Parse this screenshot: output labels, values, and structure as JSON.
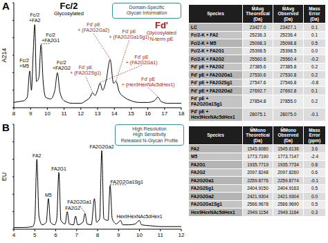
{
  "chart_data": [
    {
      "type": "line",
      "panel": "A",
      "title": {
        "text": [
          "Fc/2",
          "Glycosylated"
        ],
        "color": "#000000"
      },
      "subtitle": {
        "text": [
          "Fd'",
          "Glycosylated",
          "N-term pE"
        ],
        "color": "#9e1b1b"
      },
      "box": [
        "Domain-Specific",
        "Glycan Information"
      ],
      "y_label": "A214",
      "x": [
        8.0,
        8.3,
        8.6,
        8.8,
        8.95,
        9.05,
        9.15,
        9.25,
        9.35,
        9.5,
        9.62,
        9.75,
        9.9,
        10.2,
        10.45,
        10.6,
        10.75,
        11.0,
        11.5,
        12.0,
        12.3,
        12.55,
        12.7,
        12.85,
        13.0,
        13.15,
        13.3,
        13.5,
        13.75,
        13.95,
        14.1,
        14.3,
        14.6,
        15.0,
        15.5,
        16.0,
        16.4,
        16.6,
        16.8,
        17.2,
        17.6,
        18.0
      ],
      "values": [
        0.06,
        0.07,
        0.08,
        0.12,
        0.42,
        0.2,
        0.6,
        0.95,
        0.3,
        0.35,
        0.72,
        0.3,
        0.12,
        0.1,
        0.2,
        0.4,
        0.18,
        0.08,
        0.05,
        0.05,
        0.08,
        0.12,
        0.17,
        0.14,
        0.2,
        0.28,
        0.2,
        0.3,
        0.55,
        0.28,
        0.3,
        0.18,
        0.12,
        0.08,
        0.06,
        0.06,
        0.08,
        0.12,
        0.07,
        0.05,
        0.05,
        0.05
      ],
      "color": "#000000",
      "xlim": [
        8,
        18
      ],
      "xticks": [
        8,
        9,
        10,
        11,
        12,
        13,
        14,
        15,
        16,
        17,
        18
      ],
      "ylim": [
        0,
        1.2
      ],
      "yticks": [
        0,
        0.2,
        0.4,
        0.6,
        0.8,
        1,
        1.2
      ],
      "tick_labels": "x",
      "grid": false,
      "peak_labels": [
        {
          "text": [
            "Fc/2",
            "+M5"
          ],
          "x": 8.95,
          "y": 0.42,
          "color": "#000000"
        },
        {
          "text": [
            "Fc/2",
            "+FA2"
          ],
          "x": 9.25,
          "y": 0.95,
          "color": "#000000"
        },
        {
          "text": [
            "Fc/2",
            "+FA2G1"
          ],
          "x": 9.62,
          "y": 0.72,
          "color": "#000000"
        },
        {
          "text": [
            "Fc/2",
            "+FA2G2"
          ],
          "x": 10.6,
          "y": 0.4,
          "color": "#000000"
        },
        {
          "text": [
            "Fd' pE",
            "+ (FA2G2Sg1)"
          ],
          "x": 12.7,
          "y": 0.17,
          "color": "#9e1b1b"
        },
        {
          "text": [
            "Fd' pE",
            "+ (FA2G2Ga1)"
          ],
          "x": 13.15,
          "y": 0.28,
          "color": "#9e1b1b"
        },
        {
          "text": [
            "Fd' pE",
            "+ (FA2G2Ga2)"
          ],
          "x": 13.75,
          "y": 0.55,
          "color": "#9e1b1b"
        },
        {
          "text": [
            "Fd' pE",
            "+ (FA2G2Ga1Sg1)"
          ],
          "x": 14.1,
          "y": 0.3,
          "color": "#9e1b1b"
        },
        {
          "text": [
            "Fd' pE",
            "+ (Hex9HexNAc5dHex1)"
          ],
          "x": 16.6,
          "y": 0.12,
          "color": "#9e1b1b"
        }
      ]
    },
    {
      "type": "line",
      "panel": "B",
      "box": [
        "High Resolution",
        "High Sensitivity",
        "Released N-Glycan Profile"
      ],
      "y_label": "EU",
      "x": [
        4.0,
        4.5,
        4.9,
        5.0,
        5.1,
        5.2,
        5.35,
        5.55,
        5.65,
        5.75,
        5.95,
        6.05,
        6.15,
        6.25,
        6.45,
        6.55,
        6.65,
        6.85,
        6.95,
        7.05,
        7.3,
        7.4,
        7.5,
        7.7,
        7.85,
        7.95,
        8.1,
        8.2,
        8.3,
        8.5,
        8.6,
        8.7,
        8.9,
        9.1,
        9.2,
        9.5,
        9.8,
        10.0,
        10.1,
        10.5,
        11.0,
        11.5,
        12.0
      ],
      "values": [
        0.02,
        0.02,
        0.03,
        0.1,
        0.8,
        0.15,
        0.05,
        0.08,
        0.35,
        0.08,
        0.05,
        0.12,
        0.65,
        0.1,
        0.06,
        0.2,
        0.06,
        0.05,
        0.15,
        0.05,
        0.08,
        0.18,
        0.06,
        0.05,
        0.35,
        0.08,
        0.12,
        0.9,
        0.12,
        0.1,
        0.5,
        0.12,
        0.06,
        0.1,
        0.05,
        0.05,
        0.06,
        0.1,
        0.05,
        0.04,
        0.03,
        0.03,
        0.03
      ],
      "color": "#000000",
      "xlim": [
        4,
        12
      ],
      "xticks": [
        4,
        5,
        6,
        7,
        8,
        9,
        10,
        11,
        12
      ],
      "ylim": [
        0,
        1.2
      ],
      "yticks": [
        0,
        0.2,
        0.4,
        0.6,
        0.8,
        1,
        1.2
      ],
      "tick_labels": "x",
      "grid": false,
      "peak_labels": [
        {
          "text": "FA2",
          "x": 5.1,
          "y": 0.8,
          "color": "#000000"
        },
        {
          "text": "M5",
          "x": 5.65,
          "y": 0.35,
          "color": "#000000"
        },
        {
          "text": "FA2G1",
          "x": 6.15,
          "y": 0.65,
          "color": "#000000"
        },
        {
          "text": "FA2G2",
          "x": 6.55,
          "y": 0.2,
          "color": "#000000"
        },
        {
          "text": "FA2G2Ga1",
          "x": 7.4,
          "y": 0.18,
          "color": "#000000"
        },
        {
          "text": "FA2G2Ga2",
          "x": 8.2,
          "y": 0.9,
          "color": "#000000"
        },
        {
          "text": "FA2G2Ga1Sg1",
          "x": 8.6,
          "y": 0.5,
          "color": "#000000"
        },
        {
          "text": "Hex9HexNAc5dHex1",
          "x": 10.0,
          "y": 0.1,
          "color": "#000000"
        }
      ]
    }
  ],
  "tables": [
    {
      "header": [
        "Species",
        "M̄Avg Theoretical (Da)",
        "M̄Avg Observed (Da)",
        "Mass Error (Da)"
      ],
      "rows": [
        [
          "LC",
          "23427.0",
          "23427.1",
          "0.1"
        ],
        [
          "Fc/2-K + FA2",
          "25236.3",
          "25236.4",
          "0.1"
        ],
        [
          "Fc/2-K + M5",
          "25098.3",
          "25098.8",
          "0.5"
        ],
        [
          "Fc/2-K + FA2G1",
          "25398.5",
          "25398.5",
          "0.0"
        ],
        [
          "Fc/2-K + FA2G2",
          "25560.6",
          "25560.4",
          "-0.2"
        ],
        [
          "Fd' pE + FA2G2",
          "27385.6",
          "27385.8",
          "0.2"
        ],
        [
          "Fd' pE + FA2G2Ga1",
          "27530.6",
          "27530.8",
          "0.2"
        ],
        [
          "Fd' pE + FA2G2Sg1",
          "27547.6",
          "27546.8",
          "-0.8"
        ],
        [
          "Fd' pE + FA2G2Ga2",
          "27692.7",
          "27692.8",
          "0.1"
        ],
        [
          "Fd' pE + FA2G2Ga1Sg1",
          "27854.8",
          "27855.0",
          "0.2"
        ],
        [
          "Fd' pE + Hex9HexNAc5dHex1",
          "28075.1",
          "28075.0",
          "-0.1"
        ]
      ]
    },
    {
      "header": [
        "Species",
        "M̄Mono Theoretical (Da)",
        "M̄Mono Observed (Da)",
        "Mass Error (ppm)"
      ],
      "rows": [
        [
          "FA2",
          "1545.6080",
          "1545.6136",
          "3.6"
        ],
        [
          "M5",
          "1773.7190",
          "1773.7147",
          "-2.4"
        ],
        [
          "FA2G1",
          "1935.7719",
          "1935.7734",
          "0.8"
        ],
        [
          "FA2G2",
          "2097.8248",
          "2097.8260",
          "0.6"
        ],
        [
          "FA2G2Ga1",
          "2259.8776",
          "2259.8774",
          "-0.1"
        ],
        [
          "FA2G2Sg1",
          "2404.9150",
          "2404.9163",
          "0.5"
        ],
        [
          "FA2G2Ga2",
          "2421.9304",
          "2421.9304",
          "0.0"
        ],
        [
          "FA2G2Ga1Sg1",
          "2566.9678",
          "2566.9690",
          "0.5"
        ],
        [
          "Hex9HexNAc5dHex1",
          "2949.1154",
          "2949.1164",
          "0.3"
        ]
      ]
    }
  ]
}
